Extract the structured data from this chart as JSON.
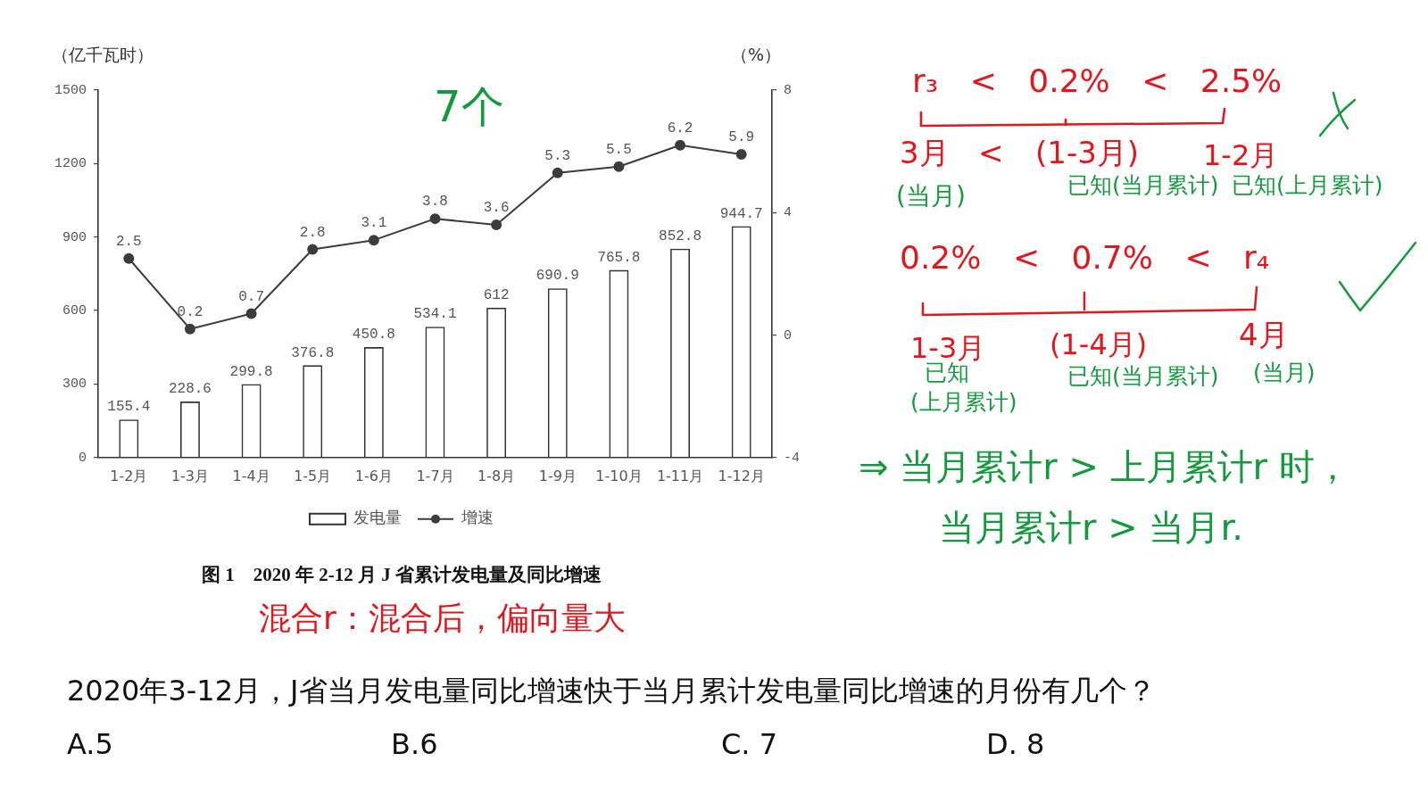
{
  "chart_data": {
    "type": "bar",
    "title": "图 1    2020 年 2-12 月 J 省累计发电量及同比增速",
    "categories": [
      "1-2月",
      "1-3月",
      "1-4月",
      "1-5月",
      "1-6月",
      "1-7月",
      "1-8月",
      "1-9月",
      "1-10月",
      "1-11月",
      "1-12月"
    ],
    "series": [
      {
        "name": "发电量",
        "color": "#333333",
        "values": [
          155.4,
          228.6,
          299.8,
          376.8,
          450.8,
          534.1,
          612,
          690.9,
          765.8,
          852.8,
          944.7
        ]
      },
      {
        "name": "增速",
        "type": "line",
        "axis": "y2",
        "color": "#3c3c3c",
        "values": [
          2.5,
          0.2,
          0.7,
          2.8,
          3.1,
          3.8,
          3.6,
          5.3,
          5.5,
          6.2,
          5.9
        ]
      }
    ],
    "ylabel": "（亿千瓦时）",
    "y2label": "（%）",
    "ylim": [
      0,
      1500
    ],
    "yticks": [
      0,
      300,
      600,
      900,
      1200,
      1500
    ],
    "y2lim": [
      -4,
      8
    ],
    "y2ticks": [
      -4,
      0,
      4,
      8
    ],
    "data_labels": true,
    "legend": "bottom",
    "marker": "circle",
    "line_style": "solid",
    "annotations": [
      "7个",
      "r₃ < 0.2% < 2.5%",
      "3月",
      "<",
      "(1-3月)",
      "1-2月",
      "(当月)",
      "已知(当月累计)",
      "已知(上月累计)",
      "0.2% < 0.7% < r₄",
      "1-3月",
      "(1-4月)",
      "4月",
      "已知",
      "(上月累计)",
      "已知(当月累计)",
      "(当月)",
      "⇒ 当月累计r > 上月累计r 时，",
      "当月累计r > 当月r.",
      "混合r：混合后，偏向量大",
      "2020年3-12月，J省当月发电量同比增速快于当月累计发电量同比增速的月份有几个？",
      "A.5",
      "B.6",
      "C. 7",
      "D. 8"
    ]
  }
}
